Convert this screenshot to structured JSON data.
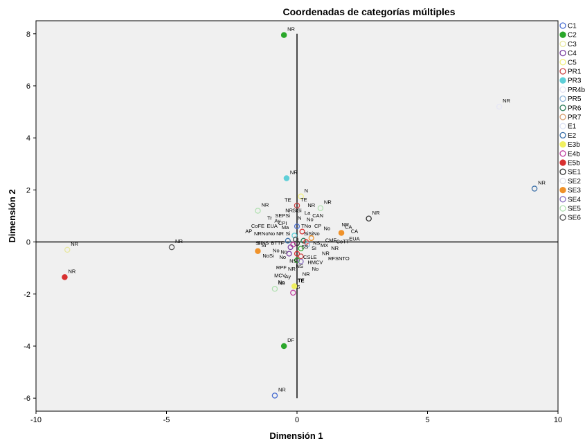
{
  "chart_data": {
    "type": "scatter",
    "title": "Coordenadas de categorías múltiples",
    "xlabel": "Dimensión 1",
    "ylabel": "Dimensión 2",
    "xlim": [
      -10,
      10
    ],
    "ylim": [
      -6.5,
      8.5
    ],
    "xticks": [
      -10,
      -5,
      0,
      5,
      10
    ],
    "yticks": [
      -6,
      -4,
      -2,
      0,
      2,
      4,
      6,
      8
    ],
    "plot_background": "#f0f0f0",
    "legend_position": "right",
    "series": [
      {
        "name": "C1",
        "color": "#4b6fd1",
        "filled": false,
        "points": [
          {
            "x": -0.85,
            "y": -5.9,
            "label": "NR"
          }
        ]
      },
      {
        "name": "C2",
        "color": "#2aa72a",
        "filled": true,
        "points": [
          {
            "x": -0.5,
            "y": 7.95,
            "label": "NR"
          },
          {
            "x": -0.5,
            "y": -4.0,
            "label": "DF"
          }
        ]
      },
      {
        "name": "C3",
        "color": "#e8e8a0",
        "filled": false,
        "points": [
          {
            "x": -8.8,
            "y": -0.3,
            "label": "NR"
          }
        ]
      },
      {
        "name": "C4",
        "color": "#7a3fa0",
        "filled": false,
        "points": []
      },
      {
        "name": "C5",
        "color": "#f2f080",
        "filled": false,
        "points": [
          {
            "x": 0.15,
            "y": 1.75,
            "label": "N"
          }
        ]
      },
      {
        "name": "PR1",
        "color": "#cc4444",
        "filled": false,
        "points": [
          {
            "x": 0.0,
            "y": 1.4,
            "label": "TE"
          }
        ]
      },
      {
        "name": "PR3",
        "color": "#5fcfd8",
        "filled": true,
        "points": [
          {
            "x": -0.4,
            "y": 2.45,
            "label": "NR"
          }
        ]
      },
      {
        "name": "PR4b",
        "color": "#e6e6f5",
        "filled": false,
        "points": [
          {
            "x": 7.75,
            "y": 5.2,
            "label": "NR"
          }
        ]
      },
      {
        "name": "PR5",
        "color": "#8fb5d8",
        "filled": false,
        "points": []
      },
      {
        "name": "PR6",
        "color": "#2e7d5a",
        "filled": false,
        "points": []
      },
      {
        "name": "PR7",
        "color": "#d8a070",
        "filled": false,
        "points": []
      },
      {
        "name": "E1",
        "color": "#dde3f5",
        "filled": false,
        "points": []
      },
      {
        "name": "E2",
        "color": "#3a6fa8",
        "filled": false,
        "points": [
          {
            "x": 9.1,
            "y": 2.05,
            "label": "NR"
          }
        ]
      },
      {
        "name": "E3b",
        "color": "#f0f060",
        "filled": true,
        "points": [
          {
            "x": -0.1,
            "y": -1.7,
            "label": "TE"
          }
        ]
      },
      {
        "name": "E4b",
        "color": "#c040a0",
        "filled": false,
        "points": [
          {
            "x": -0.15,
            "y": -1.95,
            "label": "S"
          }
        ]
      },
      {
        "name": "E5b",
        "color": "#d83030",
        "filled": true,
        "points": [
          {
            "x": -8.9,
            "y": -1.35,
            "label": "NR"
          }
        ]
      },
      {
        "name": "SE1",
        "color": "#333333",
        "filled": false,
        "points": [
          {
            "x": 2.75,
            "y": 0.9,
            "label": "NR"
          }
        ]
      },
      {
        "name": "SE2",
        "color": "#e0e0e8",
        "filled": false,
        "points": []
      },
      {
        "name": "SE3",
        "color": "#f0922a",
        "filled": true,
        "points": [
          {
            "x": 1.7,
            "y": 0.35,
            "label": "CA"
          },
          {
            "x": -1.5,
            "y": -0.35,
            "label": "Si"
          }
        ]
      },
      {
        "name": "SE4",
        "color": "#8a70c0",
        "filled": false,
        "points": []
      },
      {
        "name": "SE5",
        "color": "#b0e0b0",
        "filled": false,
        "points": [
          {
            "x": -1.5,
            "y": 1.2,
            "label": "NR"
          },
          {
            "x": -0.85,
            "y": -1.8,
            "label": "No"
          },
          {
            "x": 0.9,
            "y": 1.3,
            "label": "NR"
          }
        ]
      },
      {
        "name": "SE6",
        "color": "#555555",
        "filled": false,
        "points": [
          {
            "x": -4.8,
            "y": -0.2,
            "label": "NR"
          }
        ]
      }
    ],
    "cluster_labels": [
      {
        "x": -0.35,
        "y": 1.55,
        "text": "TE"
      },
      {
        "x": 0.55,
        "y": 1.35,
        "text": "NR"
      },
      {
        "x": -0.3,
        "y": 1.15,
        "text": "NR"
      },
      {
        "x": 0.0,
        "y": 1.15,
        "text": "SiSi"
      },
      {
        "x": 0.4,
        "y": 1.05,
        "text": "La"
      },
      {
        "x": 0.8,
        "y": 0.95,
        "text": "CAN"
      },
      {
        "x": -0.55,
        "y": 0.95,
        "text": "SEPSi"
      },
      {
        "x": 0.1,
        "y": 0.85,
        "text": "N"
      },
      {
        "x": 0.5,
        "y": 0.8,
        "text": "No"
      },
      {
        "x": -1.05,
        "y": 0.85,
        "text": "Tr"
      },
      {
        "x": -0.75,
        "y": 0.75,
        "text": "Ay"
      },
      {
        "x": -0.55,
        "y": 0.65,
        "text": "CPI"
      },
      {
        "x": 0.35,
        "y": 0.55,
        "text": "TNo"
      },
      {
        "x": 0.8,
        "y": 0.55,
        "text": "CP"
      },
      {
        "x": 1.15,
        "y": 0.45,
        "text": "No"
      },
      {
        "x": 1.85,
        "y": 0.6,
        "text": "NR"
      },
      {
        "x": -1.5,
        "y": 0.55,
        "text": "CoFE"
      },
      {
        "x": -0.95,
        "y": 0.55,
        "text": "EUA"
      },
      {
        "x": -0.45,
        "y": 0.5,
        "text": "Ma"
      },
      {
        "x": -1.85,
        "y": 0.35,
        "text": "AP"
      },
      {
        "x": -1.5,
        "y": 0.25,
        "text": "NR"
      },
      {
        "x": -1.1,
        "y": 0.25,
        "text": "NoNo"
      },
      {
        "x": -0.65,
        "y": 0.25,
        "text": "NR"
      },
      {
        "x": -0.35,
        "y": 0.25,
        "text": "Si"
      },
      {
        "x": 0.35,
        "y": 0.25,
        "text": "Si"
      },
      {
        "x": 0.65,
        "y": 0.25,
        "text": "SiNo"
      },
      {
        "x": 2.2,
        "y": 0.35,
        "text": "CA"
      },
      {
        "x": 2.2,
        "y": 0.05,
        "text": "EUA"
      },
      {
        "x": 1.3,
        "y": 0.0,
        "text": "CMF"
      },
      {
        "x": 1.75,
        "y": -0.05,
        "text": "CoTT"
      },
      {
        "x": -1.5,
        "y": -0.1,
        "text": "Si"
      },
      {
        "x": -1.3,
        "y": -0.1,
        "text": "SiNS"
      },
      {
        "x": -0.75,
        "y": -0.1,
        "text": "BTTF"
      },
      {
        "x": 0.75,
        "y": -0.1,
        "text": "NS"
      },
      {
        "x": 1.05,
        "y": -0.2,
        "text": "MX"
      },
      {
        "x": 0.3,
        "y": -0.25,
        "text": "SS"
      },
      {
        "x": 0.65,
        "y": -0.3,
        "text": "Si"
      },
      {
        "x": 1.45,
        "y": -0.3,
        "text": "NR"
      },
      {
        "x": -0.8,
        "y": -0.4,
        "text": "No"
      },
      {
        "x": -0.5,
        "y": -0.45,
        "text": "No"
      },
      {
        "x": 1.1,
        "y": -0.5,
        "text": "NR"
      },
      {
        "x": -1.1,
        "y": -0.6,
        "text": "NoSi"
      },
      {
        "x": -0.55,
        "y": -0.65,
        "text": "No"
      },
      {
        "x": 0.5,
        "y": -0.65,
        "text": "CSLE"
      },
      {
        "x": 1.6,
        "y": -0.7,
        "text": "RFSNTO"
      },
      {
        "x": 0.7,
        "y": -0.85,
        "text": "HMCV"
      },
      {
        "x": -0.15,
        "y": -0.8,
        "text": "NS"
      },
      {
        "x": 0.1,
        "y": -1.0,
        "text": "NS"
      },
      {
        "x": -0.6,
        "y": -1.05,
        "text": "RPF"
      },
      {
        "x": -0.2,
        "y": -1.1,
        "text": "NR"
      },
      {
        "x": 0.7,
        "y": -1.1,
        "text": "No"
      },
      {
        "x": 0.35,
        "y": -1.3,
        "text": "NR"
      },
      {
        "x": -0.65,
        "y": -1.35,
        "text": "MCV"
      },
      {
        "x": -0.35,
        "y": -1.4,
        "text": "Ay"
      },
      {
        "x": 0.15,
        "y": -1.55,
        "text": "TE"
      },
      {
        "x": -0.6,
        "y": -1.6,
        "text": "No"
      }
    ],
    "cluster_markers": [
      {
        "x": 0.0,
        "y": 0.6,
        "color": "#4b6fd1"
      },
      {
        "x": 0.2,
        "y": 0.4,
        "color": "#d83030"
      },
      {
        "x": -0.1,
        "y": 0.25,
        "color": "#5fcfd8"
      },
      {
        "x": 0.25,
        "y": 0.05,
        "color": "#2e7d5a"
      },
      {
        "x": 0.35,
        "y": 0.0,
        "color": "#d83030"
      },
      {
        "x": 0.0,
        "y": -0.05,
        "color": "#333333"
      },
      {
        "x": -0.25,
        "y": -0.2,
        "color": "#7a3fa0"
      },
      {
        "x": 0.15,
        "y": -0.25,
        "color": "#2aa72a"
      },
      {
        "x": -0.3,
        "y": -0.45,
        "color": "#7a3fa0"
      },
      {
        "x": 0.0,
        "y": -0.45,
        "color": "#d83030"
      },
      {
        "x": 0.15,
        "y": -0.55,
        "color": "#cc4444"
      },
      {
        "x": 0.0,
        "y": -0.7,
        "color": "#2aa72a"
      },
      {
        "x": 0.15,
        "y": -0.75,
        "color": "#8a70c0"
      },
      {
        "x": -0.35,
        "y": 0.05,
        "color": "#3a6fa8"
      },
      {
        "x": 0.55,
        "y": 0.15,
        "color": "#f0922a"
      },
      {
        "x": -0.15,
        "y": -0.1,
        "color": "#c040a0"
      },
      {
        "x": 0.4,
        "y": -0.1,
        "color": "#8fb5d8"
      },
      {
        "x": -0.05,
        "y": 0.1,
        "color": "#555555"
      }
    ]
  }
}
